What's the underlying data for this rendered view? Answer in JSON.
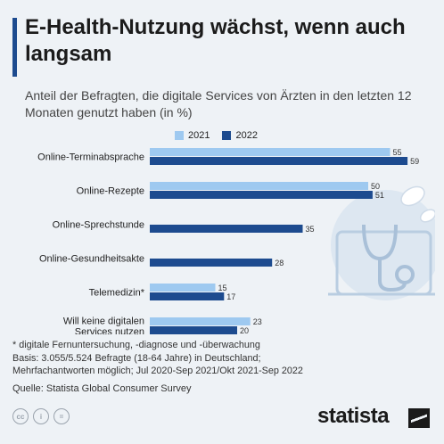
{
  "header": {
    "title": "E-Health-Nutzung wächst, wenn auch langsam",
    "subtitle": "Anteil der Befragten, die digitale Services von Ärzten in den letzten 12 Monaten genutzt haben (in %)"
  },
  "chart_data": {
    "type": "bar",
    "orientation": "horizontal",
    "categories": [
      "Online-Terminabsprache",
      "Online-Rezepte",
      "Online-Sprechstunde",
      "Online-Gesundheitsakte",
      "Telemedizin*",
      "Will keine digitalen Services nutzen"
    ],
    "series": [
      {
        "name": "2021",
        "color": "#9ec9f0",
        "values": [
          55,
          50,
          null,
          null,
          15,
          23
        ]
      },
      {
        "name": "2022",
        "color": "#1d4b8f",
        "values": [
          59,
          51,
          35,
          28,
          17,
          20
        ]
      }
    ],
    "xlim": [
      0,
      60
    ],
    "grid": false,
    "legend_position": "top"
  },
  "footer": {
    "footnote_lines": [
      "* digitale Fernuntersuchung, -diagnose und -überwachung",
      "Basis: 3.055/5.524 Befragte (18-64 Jahre) in Deutschland;",
      "Mehrfachantworten möglich; Jul 2020-Sep 2021/Okt 2021-Sep 2022"
    ],
    "source": "Quelle: Statista Global Consumer Survey",
    "license_icons": [
      "cc-icon",
      "attribution-icon",
      "noderivs-icon"
    ],
    "brand": "statista"
  }
}
